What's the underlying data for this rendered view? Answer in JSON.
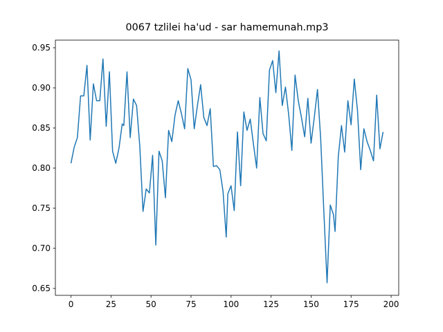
{
  "chart_data": {
    "type": "line",
    "title": "0067 tzlilei ha'ud - sar hamemunah.mp3",
    "x": [
      0,
      2,
      4,
      6,
      8,
      10,
      12,
      14,
      16,
      18,
      20,
      22,
      24,
      26,
      28,
      30,
      32,
      33,
      35,
      37,
      39,
      41,
      43,
      45,
      47,
      49,
      51,
      53,
      55,
      57,
      59,
      61,
      63,
      65,
      67,
      69,
      71,
      73,
      75,
      77,
      79,
      81,
      83,
      85,
      87,
      89,
      91,
      93,
      95,
      97,
      98,
      100,
      102,
      104,
      106,
      108,
      110,
      112,
      114,
      116,
      118,
      120,
      122,
      124,
      126,
      128,
      130,
      132,
      134,
      136,
      138,
      140,
      142,
      144,
      146,
      148,
      150,
      152,
      154,
      156,
      158,
      160,
      162,
      164,
      165,
      167,
      169,
      171,
      173,
      175,
      177,
      179,
      181,
      183,
      185,
      187,
      189,
      191,
      193,
      195
    ],
    "series": [
      {
        "color": "#1f77b4",
        "values": [
          0.806,
          0.826,
          0.838,
          0.89,
          0.89,
          0.928,
          0.835,
          0.905,
          0.884,
          0.884,
          0.936,
          0.852,
          0.92,
          0.821,
          0.806,
          0.825,
          0.855,
          0.853,
          0.92,
          0.838,
          0.886,
          0.878,
          0.827,
          0.746,
          0.774,
          0.769,
          0.816,
          0.704,
          0.821,
          0.809,
          0.763,
          0.847,
          0.833,
          0.866,
          0.884,
          0.868,
          0.849,
          0.924,
          0.91,
          0.849,
          0.878,
          0.904,
          0.863,
          0.853,
          0.874,
          0.802,
          0.803,
          0.798,
          0.771,
          0.714,
          0.768,
          0.778,
          0.747,
          0.845,
          0.778,
          0.87,
          0.847,
          0.861,
          0.83,
          0.8,
          0.888,
          0.843,
          0.834,
          0.922,
          0.934,
          0.894,
          0.946,
          0.878,
          0.901,
          0.867,
          0.822,
          0.916,
          0.884,
          0.863,
          0.839,
          0.887,
          0.831,
          0.863,
          0.898,
          0.837,
          0.745,
          0.657,
          0.754,
          0.742,
          0.721,
          0.814,
          0.853,
          0.82,
          0.884,
          0.854,
          0.911,
          0.872,
          0.798,
          0.849,
          0.833,
          0.822,
          0.809,
          0.891,
          0.824,
          0.845
        ]
      }
    ],
    "xlim": [
      -9.75,
      204.75
    ],
    "xticks": [
      0,
      25,
      50,
      75,
      100,
      125,
      150,
      175,
      200
    ],
    "ylim": [
      0.6414,
      0.9595
    ],
    "yticks": [
      0.65,
      {
        "value": 0.7,
        "label": "0.70"
      },
      0.75,
      {
        "value": 0.8,
        "label": "0.80"
      },
      0.85,
      {
        "value": 0.9,
        "label": "0.90"
      },
      0.95
    ],
    "grid": false
  }
}
